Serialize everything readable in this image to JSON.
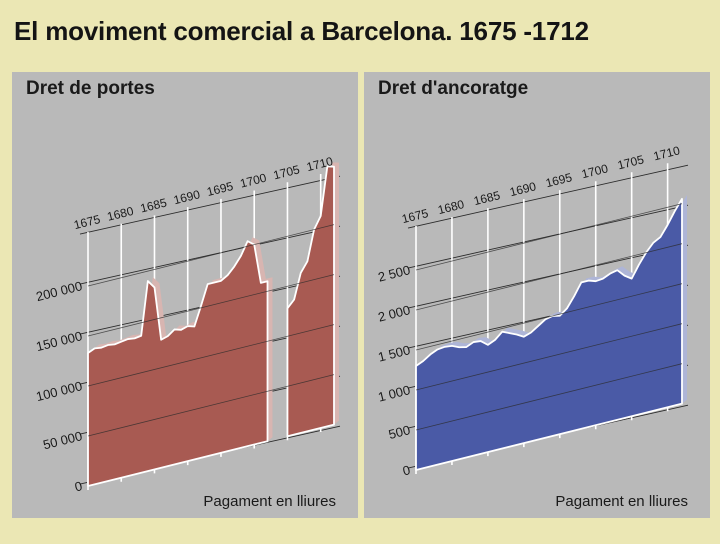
{
  "title": "El moviment comercial a Barcelona. 1675 -1712",
  "chart_data": [
    {
      "type": "area",
      "title": "Dret de portes",
      "unit_note": "Pagament en lliures",
      "x_ticks": [
        "1675",
        "1680",
        "1685",
        "1690",
        "1695",
        "1700",
        "1705",
        "1710"
      ],
      "y_ticks": [
        {
          "value": 0,
          "label": "0"
        },
        {
          "value": 50000,
          "label": "50 000"
        },
        {
          "value": 100000,
          "label": "100 000"
        },
        {
          "value": 150000,
          "label": "150 000"
        },
        {
          "value": 200000,
          "label": "200 000"
        }
      ],
      "xlim": [
        1675,
        1712
      ],
      "ylim": [
        0,
        250000
      ],
      "color": "#a85a52",
      "series": [
        {
          "segments": [
            [
              [
                1675,
                133000
              ],
              [
                1676,
                136000
              ],
              [
                1677,
                135000
              ],
              [
                1678,
                136000
              ],
              [
                1679,
                135000
              ],
              [
                1680,
                136000
              ],
              [
                1681,
                137000
              ],
              [
                1682,
                136000
              ],
              [
                1683,
                137000
              ],
              [
                1684,
                190000
              ],
              [
                1685,
                182000
              ],
              [
                1686,
                128000
              ],
              [
                1687,
                130000
              ],
              [
                1688,
                135000
              ],
              [
                1689,
                133000
              ],
              [
                1690,
                135000
              ],
              [
                1691,
                133000
              ],
              [
                1692,
                152000
              ],
              [
                1693,
                172000
              ],
              [
                1694,
                172000
              ],
              [
                1695,
                172000
              ],
              [
                1696,
                176000
              ],
              [
                1697,
                183000
              ],
              [
                1698,
                192000
              ],
              [
                1699,
                205000
              ],
              [
                1700,
                200000
              ],
              [
                1701,
                160000
              ],
              [
                1702,
                160000
              ]
            ],
            [
              [
                1705,
                128000
              ],
              [
                1706,
                135000
              ],
              [
                1707,
                160000
              ],
              [
                1708,
                170000
              ],
              [
                1709,
                200000
              ],
              [
                1710,
                212000
              ],
              [
                1711,
                260000
              ],
              [
                1712,
                258000
              ]
            ]
          ]
        }
      ]
    },
    {
      "type": "area",
      "title": "Dret d'ancoratge",
      "unit_note": "Pagament en lliures",
      "x_ticks": [
        "1675",
        "1680",
        "1685",
        "1690",
        "1695",
        "1700",
        "1705",
        "1710"
      ],
      "y_ticks": [
        {
          "value": 0,
          "label": "0"
        },
        {
          "value": 500,
          "label": "500"
        },
        {
          "value": 1000,
          "label": "1 000"
        },
        {
          "value": 1500,
          "label": "1 500"
        },
        {
          "value": 2000,
          "label": "2 000"
        },
        {
          "value": 2500,
          "label": "2 500"
        }
      ],
      "xlim": [
        1675,
        1712
      ],
      "ylim": [
        0,
        3000
      ],
      "color": "#4a5aa6",
      "series": [
        {
          "segments": [
            [
              [
                1675,
                1300
              ],
              [
                1676,
                1340
              ],
              [
                1677,
                1400
              ],
              [
                1678,
                1440
              ],
              [
                1679,
                1450
              ],
              [
                1680,
                1440
              ],
              [
                1681,
                1400
              ],
              [
                1682,
                1380
              ],
              [
                1683,
                1420
              ],
              [
                1684,
                1410
              ],
              [
                1685,
                1340
              ],
              [
                1686,
                1380
              ],
              [
                1687,
                1460
              ],
              [
                1688,
                1420
              ],
              [
                1689,
                1380
              ],
              [
                1690,
                1330
              ],
              [
                1691,
                1360
              ],
              [
                1692,
                1420
              ],
              [
                1693,
                1480
              ],
              [
                1694,
                1500
              ],
              [
                1695,
                1480
              ],
              [
                1696,
                1550
              ],
              [
                1697,
                1680
              ],
              [
                1698,
                1830
              ],
              [
                1699,
                1830
              ],
              [
                1700,
                1800
              ],
              [
                1701,
                1810
              ],
              [
                1702,
                1850
              ],
              [
                1703,
                1870
              ],
              [
                1704,
                1780
              ],
              [
                1705,
                1720
              ],
              [
                1706,
                1870
              ],
              [
                1707,
                2000
              ],
              [
                1708,
                2100
              ],
              [
                1709,
                2150
              ],
              [
                1710,
                2280
              ],
              [
                1711,
                2430
              ],
              [
                1712,
                2560
              ]
            ]
          ]
        }
      ]
    }
  ]
}
